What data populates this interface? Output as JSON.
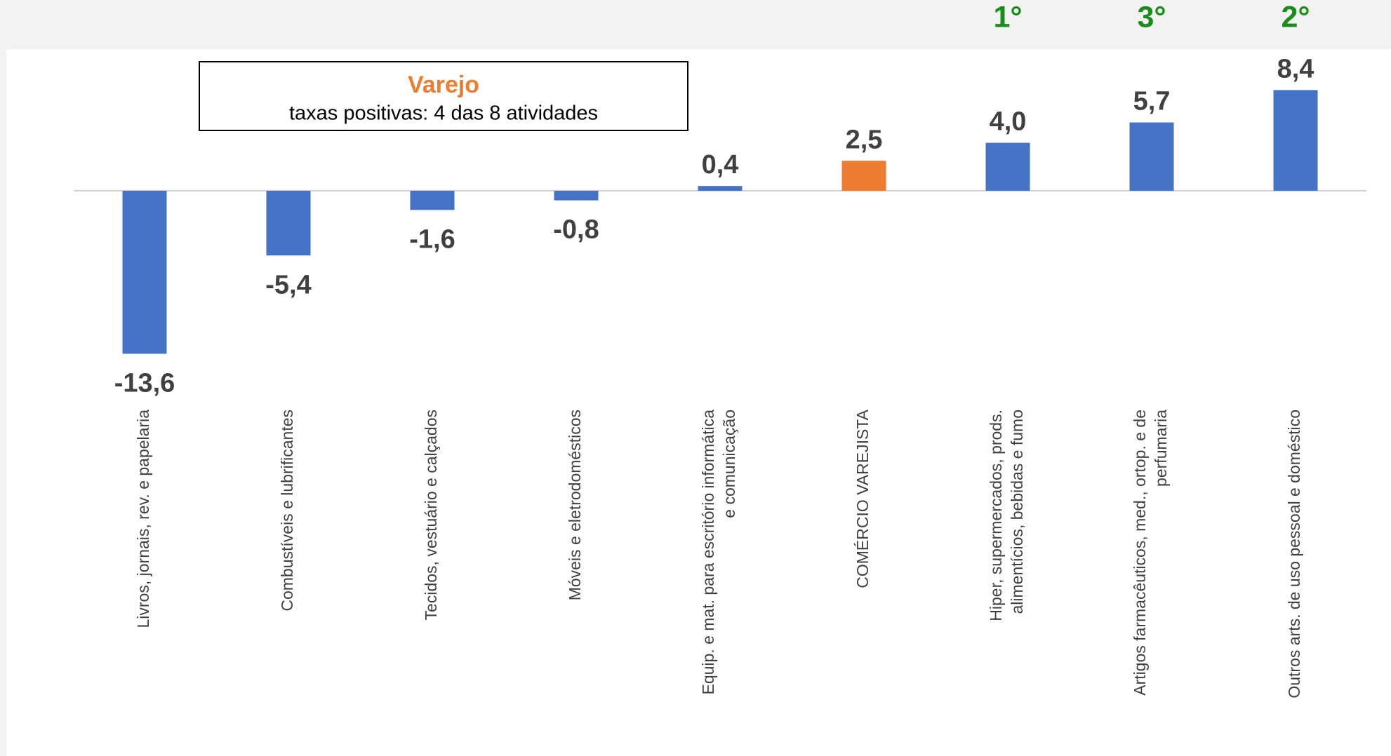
{
  "chart_data": {
    "type": "bar",
    "box_title": "Varejo",
    "box_subtitle": "taxas positivas: 4 das 8 atividades",
    "categories": [
      "Livros, jornais, rev. e papelaria",
      "Combustíveis e lubrificantes",
      "Tecidos, vestuário e calçados",
      "Móveis e eletrodomésticos",
      "Equip. e mat. para escritório informática e comunicação",
      "COMÉRCIO VAREJISTA",
      "Hiper, supermercados, prods. alimentícios, bebidas e fumo",
      "Artigos farmacêuticos, med., ortop. e de perfumaria",
      "Outros arts. de uso pessoal e doméstico"
    ],
    "values": [
      -13.6,
      -5.4,
      -1.6,
      -0.8,
      0.4,
      2.5,
      4.0,
      5.7,
      8.4
    ],
    "value_labels": [
      "-13,6",
      "-5,4",
      "-1,6",
      "-0,8",
      "0,4",
      "2,5",
      "4,0",
      "5,7",
      "8,4"
    ],
    "colors": [
      "#4472c4",
      "#4472c4",
      "#4472c4",
      "#4472c4",
      "#4472c4",
      "#ed7d31",
      "#4472c4",
      "#4472c4",
      "#4472c4"
    ],
    "rank_labels": [
      null,
      null,
      null,
      null,
      null,
      null,
      "1°",
      "3°",
      "2°"
    ],
    "rank_color": "#1a8c1a",
    "box_title_color": "#ed7d31"
  }
}
